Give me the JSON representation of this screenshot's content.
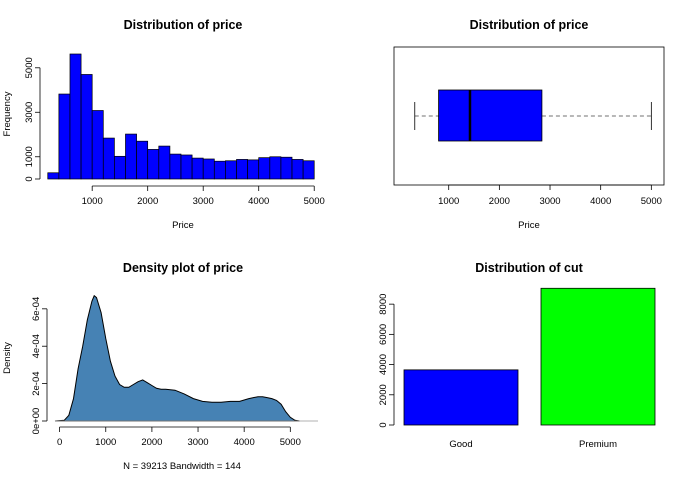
{
  "colors": {
    "primary": "#0000ff",
    "density_fill": "#4682b4",
    "premium": "#00ff00",
    "axis": "#000000"
  },
  "chart_data": [
    {
      "type": "bar",
      "subtype": "histogram",
      "title": "Distribution of price",
      "xlabel": "Price",
      "ylabel": "Frequency",
      "bin_width": 200,
      "bin_starts": [
        200,
        400,
        600,
        800,
        1000,
        1200,
        1400,
        1600,
        1800,
        2000,
        2200,
        2400,
        2600,
        2800,
        3000,
        3200,
        3400,
        3600,
        3800,
        4000,
        4200,
        4400,
        4600,
        4800
      ],
      "values": [
        280,
        3820,
        5620,
        4700,
        3080,
        1840,
        1020,
        2020,
        1700,
        1330,
        1480,
        1120,
        1080,
        940,
        900,
        800,
        820,
        880,
        860,
        960,
        1000,
        980,
        880,
        820
      ],
      "xlim": [
        150,
        5050
      ],
      "ylim": [
        0,
        5800
      ],
      "xticks": [
        1000,
        2000,
        3000,
        4000,
        5000
      ],
      "yticks": [
        0,
        1000,
        3000,
        5000
      ],
      "xtick_labels": [
        "1000",
        "2000",
        "3000",
        "4000",
        "5000"
      ],
      "ytick_labels": [
        "0",
        "1000",
        "3000",
        "5000"
      ]
    },
    {
      "type": "boxplot",
      "title": "Distribution of price",
      "xlabel": "Price",
      "orientation": "horizontal",
      "min": 330,
      "q1": 800,
      "median": 1420,
      "q3": 2840,
      "max": 5000,
      "xlim": [
        -80,
        5250
      ],
      "xticks": [
        1000,
        2000,
        3000,
        4000,
        5000
      ],
      "xtick_labels": [
        "1000",
        "2000",
        "3000",
        "4000",
        "5000"
      ]
    },
    {
      "type": "area",
      "subtype": "density",
      "title": "Density plot of price",
      "ylabel": "Density",
      "xlabel": "N = 39213   Bandwidth = 144",
      "x": [
        -100,
        100,
        200,
        300,
        400,
        500,
        600,
        700,
        750,
        800,
        900,
        1000,
        1100,
        1200,
        1300,
        1400,
        1500,
        1600,
        1700,
        1800,
        1900,
        2000,
        2100,
        2200,
        2300,
        2500,
        2700,
        2900,
        3100,
        3300,
        3500,
        3700,
        3900,
        4100,
        4200,
        4300,
        4400,
        4500,
        4600,
        4700,
        4800,
        4900,
        5000,
        5100,
        5200
      ],
      "y": [
        0,
        4e-06,
        3e-05,
        0.00012,
        0.00028,
        0.0004,
        0.00054,
        0.00064,
        0.00067,
        0.00066,
        0.00058,
        0.00044,
        0.00032,
        0.00024,
        0.000195,
        0.00018,
        0.00018,
        0.000195,
        0.00021,
        0.00022,
        0.000205,
        0.00019,
        0.000175,
        0.00017,
        0.00017,
        0.000165,
        0.000145,
        0.00012,
        0.000105,
        0.0001,
        0.0001,
        0.000105,
        0.000105,
        0.00012,
        0.000125,
        0.00013,
        0.00013,
        0.000125,
        0.00012,
        0.00011,
        9e-05,
        5e-05,
        2e-05,
        4e-06,
        0
      ],
      "xlim": [
        -100,
        5600
      ],
      "ylim": [
        0,
        0.00069
      ],
      "xticks": [
        0,
        1000,
        2000,
        3000,
        4000,
        5000
      ],
      "yticks": [
        0,
        0.0002,
        0.0004,
        0.0006
      ],
      "xtick_labels": [
        "0",
        "1000",
        "2000",
        "3000",
        "4000",
        "5000"
      ],
      "ytick_labels": [
        "0e+00",
        "2e-04",
        "4e-04",
        "6e-04"
      ]
    },
    {
      "type": "bar",
      "title": "Distribution of cut",
      "categories": [
        "Good",
        "Premium"
      ],
      "values": [
        3650,
        9050
      ],
      "bar_colors": [
        "#0000ff",
        "#00ff00"
      ],
      "ylim": [
        0,
        9400
      ],
      "yticks": [
        0,
        2000,
        4000,
        6000,
        8000
      ],
      "ytick_labels": [
        "0",
        "2000",
        "4000",
        "6000",
        "8000"
      ]
    }
  ]
}
